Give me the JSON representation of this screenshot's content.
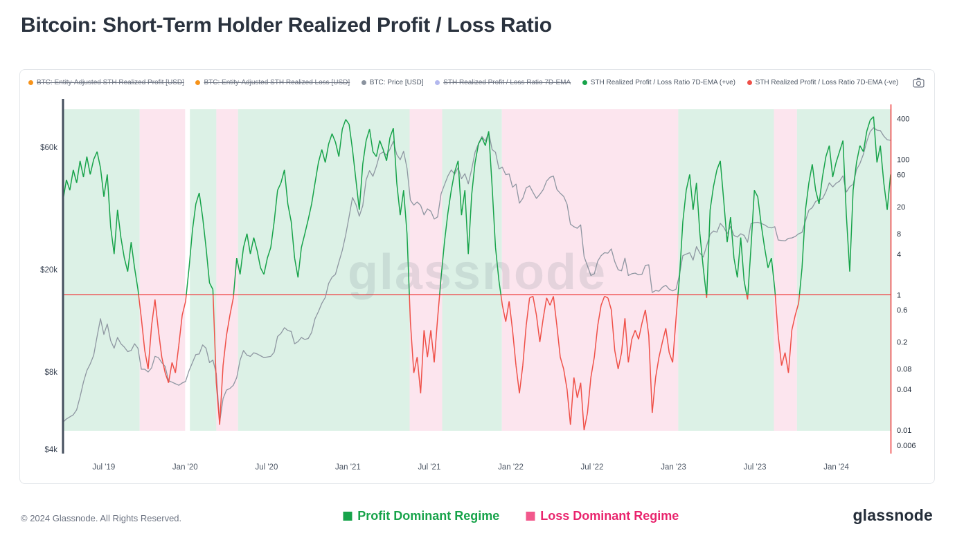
{
  "page": {
    "title": "Bitcoin: Short-Term Holder Realized Profit / Loss Ratio",
    "footer_copyright": "© 2024 Glassnode. All Rights Reserved.",
    "brand": "glassnode",
    "watermark": "glassnode"
  },
  "legend": {
    "items": [
      {
        "label": "BTC: Entity-Adjusted STH Realized Profit [USD]",
        "color": "#f7931a",
        "disabled": true
      },
      {
        "label": "BTC: Entity-Adjusted STH Realized Loss [USD]",
        "color": "#f7931a",
        "disabled": true
      },
      {
        "label": "BTC: Price [USD]",
        "color": "#8a929e",
        "disabled": false
      },
      {
        "label": "STH Realized Profit / Loss Ratio 7D-EMA",
        "color": "#b3b8ee",
        "disabled": true
      },
      {
        "label": "STH Realized Profit / Loss Ratio 7D-EMA (+ve)",
        "color": "#17a34a",
        "disabled": false
      },
      {
        "label": "STH Realized Profit / Loss Ratio 7D-EMA (-ve)",
        "color": "#ef5048",
        "disabled": false
      }
    ]
  },
  "regime_legend": {
    "profit": {
      "label": "Profit Dominant Regime",
      "color": "#17a34a",
      "swatch": "#17a34a"
    },
    "loss": {
      "label": "Loss Dominant Regime",
      "color": "#e9246d",
      "swatch": "#f2588c"
    }
  },
  "chart_data": {
    "type": "line",
    "title": "Bitcoin: Short-Term Holder Realized Profit / Loss Ratio",
    "legend_position": "top",
    "grid": false,
    "time_domain": {
      "start": "2019-04",
      "months": 61,
      "samples_per_month": 4
    },
    "x_axis": {
      "ticks": [
        {
          "label": "Jul '19",
          "month": 3
        },
        {
          "label": "Jan '20",
          "month": 9
        },
        {
          "label": "Jul '20",
          "month": 15
        },
        {
          "label": "Jan '21",
          "month": 21
        },
        {
          "label": "Jul '21",
          "month": 27
        },
        {
          "label": "Jan '22",
          "month": 33
        },
        {
          "label": "Jul '22",
          "month": 39
        },
        {
          "label": "Jan '23",
          "month": 45
        },
        {
          "label": "Jul '23",
          "month": 51
        },
        {
          "label": "Jan '24",
          "month": 57
        }
      ]
    },
    "left_axis": {
      "name": "BTC Price (USD)",
      "scale": "log",
      "domain": [
        3850,
        88000
      ],
      "spine_color": "#454f5e",
      "ticks": [
        {
          "label": "$60k",
          "value": 60000
        },
        {
          "label": "$20k",
          "value": 20000
        },
        {
          "label": "$8k",
          "value": 8000
        },
        {
          "label": "$4k",
          "value": 4000
        }
      ]
    },
    "right_axis": {
      "name": "STH Realized Profit / Loss Ratio",
      "scale": "log",
      "domain": [
        0.0045,
        650
      ],
      "spine_color": "#ef4444",
      "ticks": [
        {
          "label": "400",
          "value": 400
        },
        {
          "label": "100",
          "value": 100
        },
        {
          "label": "60",
          "value": 60
        },
        {
          "label": "20",
          "value": 20
        },
        {
          "label": "8",
          "value": 8
        },
        {
          "label": "4",
          "value": 4
        },
        {
          "label": "1",
          "value": 1
        },
        {
          "label": "0.6",
          "value": 0.6
        },
        {
          "label": "0.2",
          "value": 0.2
        },
        {
          "label": "0.08",
          "value": 0.08
        },
        {
          "label": "0.04",
          "value": 0.04
        },
        {
          "label": "0.01",
          "value": 0.01
        },
        {
          "label": "0.006",
          "value": 0.006
        }
      ]
    },
    "baseline": {
      "value": 1,
      "color": "#ef4444"
    },
    "regime_colors": {
      "profit": "#dcf1e6",
      "loss": "#fce5ee"
    },
    "background_regimes": [
      {
        "type": "profit",
        "start": 0,
        "end": 5.65
      },
      {
        "type": "loss",
        "start": 5.65,
        "end": 9.0
      },
      {
        "type": "profit",
        "start": 9.35,
        "end": 11.3
      },
      {
        "type": "loss",
        "start": 11.3,
        "end": 12.9
      },
      {
        "type": "profit",
        "start": 12.9,
        "end": 25.55
      },
      {
        "type": "loss",
        "start": 25.55,
        "end": 27.95
      },
      {
        "type": "profit",
        "start": 27.95,
        "end": 32.35
      },
      {
        "type": "loss",
        "start": 32.35,
        "end": 45.35
      },
      {
        "type": "profit",
        "start": 45.35,
        "end": 52.4
      },
      {
        "type": "loss",
        "start": 52.4,
        "end": 54.1
      },
      {
        "type": "profit",
        "start": 54.1,
        "end": 61
      }
    ],
    "series": [
      {
        "name": "BTC: Price [USD]",
        "axis": "left",
        "color": "#8e96a1",
        "monthly_weekly_values": [
          [
            5100,
            5250,
            5350,
            5450
          ],
          [
            5700,
            6400,
            7300,
            8100
          ],
          [
            8600,
            9300,
            11000,
            12900
          ],
          [
            11200,
            12300,
            10600,
            9900
          ],
          [
            10900,
            10300,
            10000,
            9600
          ],
          [
            9700,
            10300,
            9900,
            8200
          ],
          [
            8200,
            8000,
            8300,
            9200
          ],
          [
            9100,
            8700,
            8400,
            7400
          ],
          [
            7300,
            7200,
            7100,
            7250
          ],
          [
            7350,
            8100,
            8700,
            9350
          ],
          [
            9400,
            10200,
            9900,
            8700
          ],
          [
            8900,
            7900,
            5100,
            6300
          ],
          [
            6800,
            6900,
            7100,
            7600
          ],
          [
            8900,
            9700,
            9300,
            9200
          ],
          [
            9500,
            9400,
            9250,
            9100
          ],
          [
            9150,
            9200,
            9550,
            11000
          ],
          [
            11300,
            11900,
            11600,
            11500
          ],
          [
            10300,
            10500,
            10900,
            10700
          ],
          [
            10800,
            11400,
            12900,
            13750
          ],
          [
            14800,
            15600,
            17700,
            18700
          ],
          [
            19200,
            21400,
            23800,
            27300
          ],
          [
            32200,
            38200,
            35900,
            32300
          ],
          [
            35500,
            44800,
            48600,
            46200
          ],
          [
            50400,
            56300,
            57500,
            55800
          ],
          [
            58900,
            63200,
            56200,
            53600
          ],
          [
            57800,
            49700,
            37300,
            35700
          ],
          [
            36700,
            35600,
            32700,
            34500
          ],
          [
            33800,
            31500,
            32100,
            39500
          ],
          [
            42800,
            46300,
            48900,
            47100
          ],
          [
            49900,
            45200,
            47300,
            43200
          ],
          [
            49200,
            57400,
            62000,
            66000
          ],
          [
            63300,
            68500,
            58700,
            57300
          ],
          [
            49400,
            50100,
            46900,
            47200
          ],
          [
            41900,
            43100,
            36300,
            37900
          ],
          [
            41600,
            42400,
            40000,
            37900
          ],
          [
            39300,
            41000,
            44300,
            45800
          ],
          [
            46300,
            41100,
            39700,
            38600
          ],
          [
            36000,
            30100,
            29400,
            29000
          ],
          [
            29900,
            22500,
            20700,
            19000
          ],
          [
            19300,
            21600,
            22700,
            23300
          ],
          [
            23200,
            24100,
            21500,
            20000
          ],
          [
            19800,
            22200,
            19000,
            19300
          ],
          [
            19400,
            19100,
            19200,
            20800
          ],
          [
            20900,
            16300,
            16600,
            16500
          ],
          [
            17100,
            17400,
            16800,
            16550
          ],
          [
            16800,
            19100,
            22700,
            23000
          ],
          [
            23300,
            21800,
            24600,
            23200
          ],
          [
            22400,
            24800,
            27500,
            28300
          ],
          [
            28000,
            30300,
            29300,
            27600
          ],
          [
            29500,
            27200,
            26800,
            27600
          ],
          [
            27200,
            25600,
            30200,
            30500
          ],
          [
            30600,
            30300,
            29900,
            29300
          ],
          [
            29100,
            29400,
            26100,
            26000
          ],
          [
            25900,
            26500,
            26600,
            26950
          ],
          [
            27600,
            27950,
            31000,
            34100
          ],
          [
            34900,
            36900,
            37400,
            37800
          ],
          [
            40200,
            43600,
            42000,
            43400
          ],
          [
            44200,
            46400,
            40100,
            42100
          ],
          [
            43000,
            49000,
            51800,
            56300
          ],
          [
            63100,
            69000,
            71400,
            69900
          ],
          [
            69600,
            66200,
            64100,
            63800
          ]
        ]
      },
      {
        "name": "STH Realized Profit / Loss Ratio 7D-EMA",
        "axis": "right",
        "positive_color": "#17a34a",
        "negative_color": "#ef5048",
        "split_at": 1,
        "monthly_weekly_values": [
          [
            25,
            50,
            35,
            70
          ],
          [
            45,
            95,
            55,
            110
          ],
          [
            60,
            100,
            130,
            75
          ],
          [
            28,
            60,
            10,
            4
          ],
          [
            18,
            7,
            3.5,
            2.2
          ],
          [
            6,
            2.5,
            1.2,
            0.45
          ],
          [
            0.15,
            0.08,
            0.35,
            0.85
          ],
          [
            0.3,
            0.12,
            0.07,
            0.05
          ],
          [
            0.1,
            0.07,
            0.18,
            0.5
          ],
          [
            0.8,
            2.5,
            9,
            22
          ],
          [
            32,
            14,
            5,
            1.5
          ],
          [
            1.2,
            0.05,
            0.012,
            0.09
          ],
          [
            0.25,
            0.5,
            0.9,
            3.5
          ],
          [
            2,
            5,
            8,
            4
          ],
          [
            7,
            4.5,
            2.5,
            2
          ],
          [
            3.5,
            5,
            12,
            35
          ],
          [
            45,
            70,
            22,
            12
          ],
          [
            3.5,
            1.8,
            5,
            8
          ],
          [
            13,
            22,
            45,
            90
          ],
          [
            140,
            90,
            170,
            240
          ],
          [
            180,
            110,
            280,
            390
          ],
          [
            330,
            140,
            50,
            18
          ],
          [
            85,
            190,
            280,
            130
          ],
          [
            110,
            190,
            140,
            95
          ],
          [
            210,
            290,
            45,
            15
          ],
          [
            35,
            8,
            0.4,
            0.07
          ],
          [
            0.12,
            0.035,
            0.3,
            0.12
          ],
          [
            0.3,
            0.1,
            0.45,
            1.8
          ],
          [
            6,
            16,
            35,
            65
          ],
          [
            95,
            15,
            35,
            4
          ],
          [
            30,
            90,
            170,
            210
          ],
          [
            160,
            260,
            40,
            5
          ],
          [
            1.6,
            0.7,
            0.4,
            0.8
          ],
          [
            0.3,
            0.09,
            0.035,
            0.09
          ],
          [
            0.35,
            0.9,
            0.95,
            0.5
          ],
          [
            0.2,
            0.45,
            0.9,
            0.7
          ],
          [
            0.95,
            0.35,
            0.12,
            0.08
          ],
          [
            0.04,
            0.012,
            0.06,
            0.03
          ],
          [
            0.05,
            0.01,
            0.018,
            0.06
          ],
          [
            0.12,
            0.35,
            0.7,
            0.95
          ],
          [
            0.9,
            0.6,
            0.15,
            0.08
          ],
          [
            0.14,
            0.45,
            0.1,
            0.22
          ],
          [
            0.3,
            0.22,
            0.38,
            0.6
          ],
          [
            0.25,
            0.018,
            0.06,
            0.12
          ],
          [
            0.2,
            0.32,
            0.14,
            0.1
          ],
          [
            0.45,
            1.8,
            12,
            35
          ],
          [
            60,
            18,
            45,
            8
          ],
          [
            2.5,
            0.9,
            18,
            40
          ],
          [
            70,
            95,
            25,
            6
          ],
          [
            14,
            3.5,
            1.8,
            7
          ],
          [
            1.6,
            0.85,
            5,
            35
          ],
          [
            28,
            11,
            5,
            2.5
          ],
          [
            3.5,
            1.2,
            0.25,
            0.09
          ],
          [
            0.14,
            0.07,
            0.3,
            0.5
          ],
          [
            0.75,
            2.5,
            18,
            45
          ],
          [
            85,
            35,
            22,
            55
          ],
          [
            110,
            160,
            55,
            90
          ],
          [
            130,
            190,
            15,
            2.2
          ],
          [
            35,
            90,
            160,
            130
          ],
          [
            260,
            380,
            430,
            90
          ],
          [
            160,
            45,
            18,
            60
          ]
        ]
      }
    ]
  }
}
